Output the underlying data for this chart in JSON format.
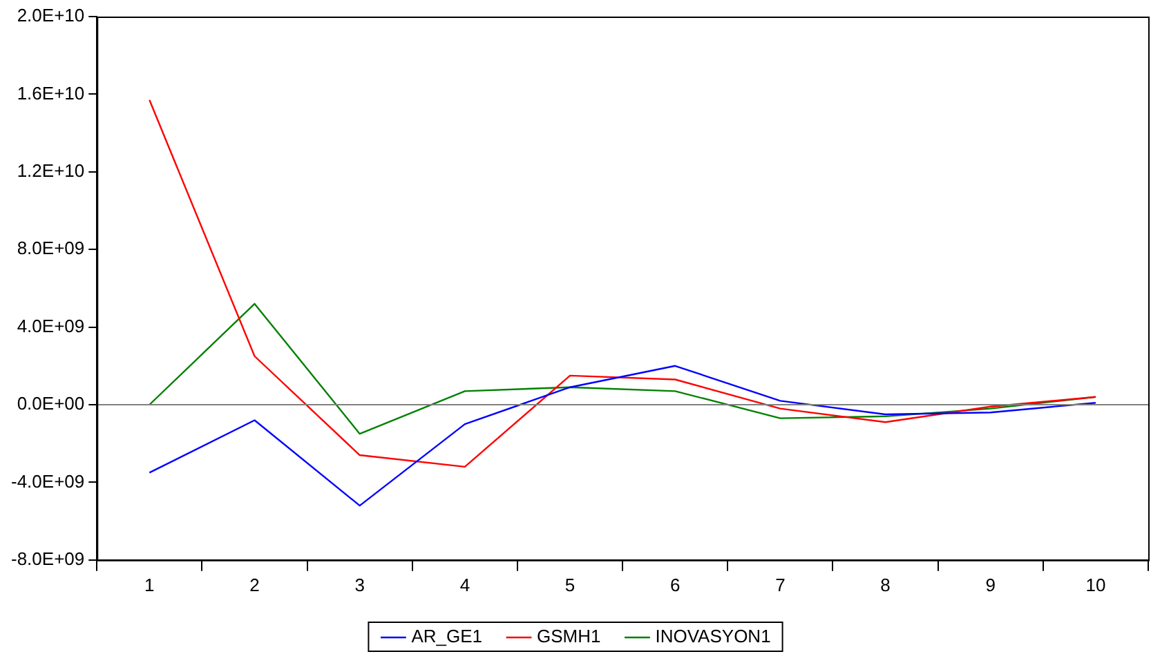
{
  "chart_data": {
    "type": "line",
    "categories": [
      "1",
      "2",
      "3",
      "4",
      "5",
      "6",
      "7",
      "8",
      "9",
      "10"
    ],
    "series": [
      {
        "name": "AR_GE1",
        "color": "#0000ff",
        "values": [
          -3500000000.0,
          -800000000.0,
          -5200000000.0,
          -1000000000.0,
          900000000.0,
          2000000000.0,
          200000000.0,
          -500000000.0,
          -400000000.0,
          100000000.0
        ]
      },
      {
        "name": "GSMH1",
        "color": "#ff0000",
        "values": [
          15700000000.0,
          2500000000.0,
          -2600000000.0,
          -3200000000.0,
          1500000000.0,
          1300000000.0,
          -200000000.0,
          -900000000.0,
          -100000000.0,
          400000000.0
        ]
      },
      {
        "name": "INOVASYON1",
        "color": "#008000",
        "values": [
          0,
          5200000000.0,
          -1500000000.0,
          700000000.0,
          900000000.0,
          700000000.0,
          -700000000.0,
          -600000000.0,
          -200000000.0,
          400000000.0
        ]
      }
    ],
    "ylim": [
      -8000000000.0,
      20000000000.0
    ],
    "yticks": [
      {
        "value": -8000000000.0,
        "label": "-8.0E+09"
      },
      {
        "value": -4000000000.0,
        "label": "-4.0E+09"
      },
      {
        "value": 0,
        "label": "0.0E+00"
      },
      {
        "value": 4000000000.0,
        "label": "4.0E+09"
      },
      {
        "value": 8000000000.0,
        "label": "8.0E+09"
      },
      {
        "value": 12000000000.0,
        "label": "1.2E+10"
      },
      {
        "value": 16000000000.0,
        "label": "1.6E+10"
      },
      {
        "value": 20000000000.0,
        "label": "2.0E+10"
      }
    ],
    "ref_lines": [
      {
        "axis": "y",
        "value": 0,
        "color": "#808080"
      }
    ],
    "grid": false,
    "legend": "bottom",
    "marker": "none",
    "line_style": "solid"
  }
}
